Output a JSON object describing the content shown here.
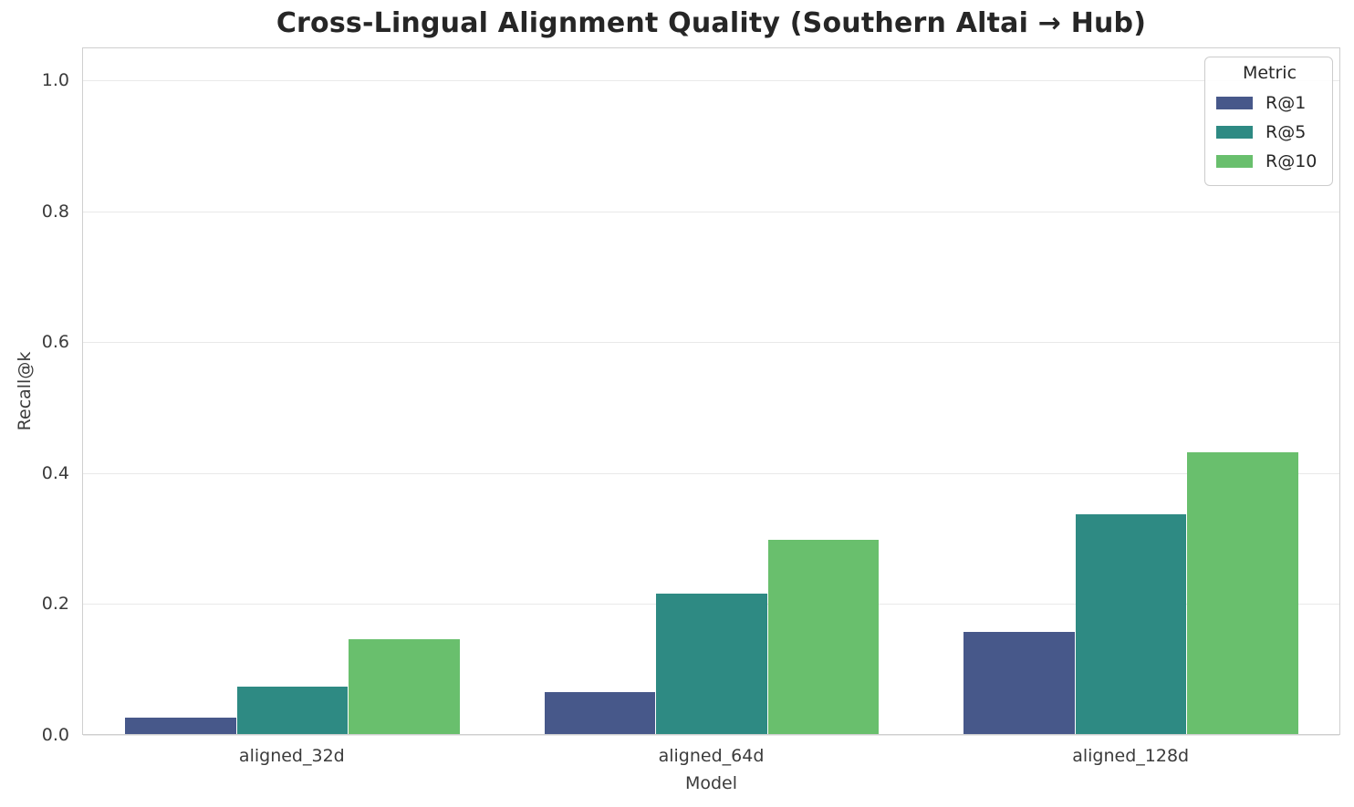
{
  "chart_data": {
    "type": "bar",
    "title": "Cross-Lingual Alignment Quality (Southern Altai → Hub)",
    "xlabel": "Model",
    "ylabel": "Recall@k",
    "categories": [
      "aligned_32d",
      "aligned_64d",
      "aligned_128d"
    ],
    "series": [
      {
        "name": "R@1",
        "color": "#47588a",
        "values": [
          0.025,
          0.064,
          0.156
        ]
      },
      {
        "name": "R@5",
        "color": "#2e8a83",
        "values": [
          0.073,
          0.215,
          0.335
        ]
      },
      {
        "name": "R@10",
        "color": "#69bf6d",
        "values": [
          0.145,
          0.297,
          0.431
        ]
      }
    ],
    "legend": {
      "title": "Metric",
      "position": "upper right"
    },
    "ylim": [
      0,
      1.05
    ],
    "yticks": [
      0.0,
      0.2,
      0.4,
      0.6,
      0.8,
      1.0
    ],
    "ytick_labels": [
      "0.0",
      "0.2",
      "0.4",
      "0.6",
      "0.8",
      "1.0"
    ],
    "grid": true,
    "bar_group_width_fraction": 0.8
  },
  "colors": {
    "background": "#ffffff",
    "grid": "#e9e9e9",
    "spine": "#cfcfcf",
    "text": "#262626",
    "tick_text": "#3b3b3b",
    "legend_border": "#cccccc"
  }
}
